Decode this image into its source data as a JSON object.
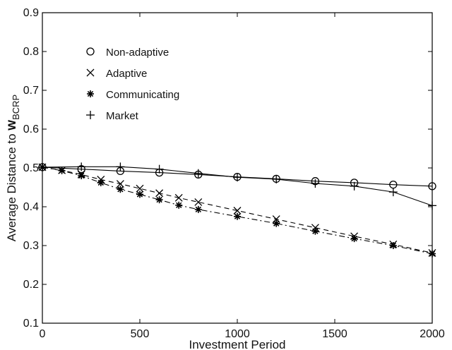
{
  "chart_data": {
    "type": "line",
    "title": "",
    "xlabel": "Investment Period",
    "ylabel_prefix": "Average Distance to ",
    "ylabel_symbol": "w",
    "ylabel_subscript": "BCRP",
    "xlim": [
      0,
      2000
    ],
    "ylim": [
      0.1,
      0.9
    ],
    "xticks": [
      0,
      500,
      1000,
      1500,
      2000
    ],
    "yticks": [
      0.1,
      0.2,
      0.3,
      0.4,
      0.5,
      0.6,
      0.7,
      0.8,
      0.9
    ],
    "xtick_labels": [
      "0",
      "500",
      "1000",
      "1500",
      "2000"
    ],
    "ytick_labels": [
      "0.1",
      "0.2",
      "0.3",
      "0.4",
      "0.5",
      "0.6",
      "0.7",
      "0.8",
      "0.9"
    ],
    "grid": false,
    "legend_position": "upper-left",
    "series": [
      {
        "name": "Non-adaptive",
        "marker": "circle",
        "line_style": "solid",
        "x": [
          0,
          200,
          400,
          600,
          800,
          1000,
          1200,
          1400,
          1600,
          1800,
          2000
        ],
        "y": [
          0.502,
          0.497,
          0.492,
          0.488,
          0.483,
          0.477,
          0.472,
          0.466,
          0.462,
          0.457,
          0.453
        ]
      },
      {
        "name": "Adaptive",
        "marker": "x",
        "line_style": "dashed",
        "x": [
          0,
          100,
          200,
          300,
          400,
          500,
          600,
          700,
          800,
          1000,
          1200,
          1400,
          1600,
          1800,
          2000
        ],
        "y": [
          0.502,
          0.494,
          0.483,
          0.47,
          0.459,
          0.447,
          0.435,
          0.423,
          0.412,
          0.39,
          0.368,
          0.346,
          0.324,
          0.303,
          0.281
        ]
      },
      {
        "name": "Communicating",
        "marker": "asterisk",
        "line_style": "dashdot",
        "x": [
          0,
          100,
          200,
          300,
          400,
          500,
          600,
          700,
          800,
          1000,
          1200,
          1400,
          1600,
          1800,
          2000
        ],
        "y": [
          0.502,
          0.493,
          0.48,
          0.462,
          0.445,
          0.432,
          0.418,
          0.404,
          0.393,
          0.375,
          0.357,
          0.337,
          0.318,
          0.3,
          0.279
        ]
      },
      {
        "name": "Market",
        "marker": "plus",
        "line_style": "solid",
        "x": [
          0,
          200,
          400,
          600,
          800,
          1000,
          1200,
          1400,
          1600,
          1800,
          2000
        ],
        "y": [
          0.502,
          0.503,
          0.503,
          0.497,
          0.486,
          0.476,
          0.471,
          0.46,
          0.453,
          0.438,
          0.403
        ]
      }
    ]
  }
}
